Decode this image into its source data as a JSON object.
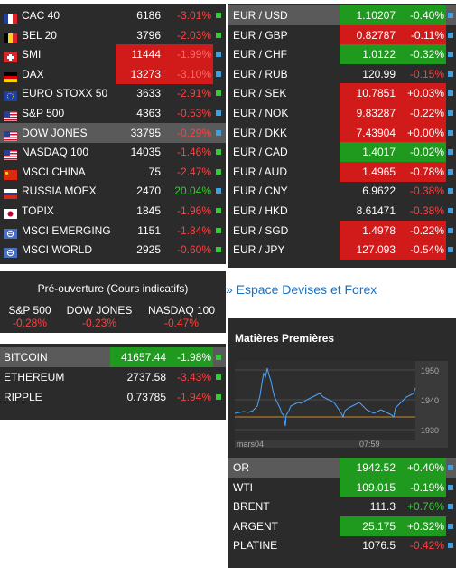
{
  "indices": [
    {
      "name": "CAC 40",
      "value": "6186",
      "change": "-3.01%",
      "flag": "fr",
      "dir": "neg",
      "hl": "",
      "sq": "g"
    },
    {
      "name": "BEL 20",
      "value": "3796",
      "change": "-2.03%",
      "flag": "be",
      "dir": "neg",
      "hl": "",
      "sq": "g"
    },
    {
      "name": "SMI",
      "value": "11444",
      "change": "-1.99%",
      "flag": "ch",
      "dir": "neg",
      "hl": "red",
      "sq": "b"
    },
    {
      "name": "DAX",
      "value": "13273",
      "change": "-3.10%",
      "flag": "de",
      "dir": "neg",
      "hl": "red",
      "sq": "b"
    },
    {
      "name": "EURO STOXX 50",
      "value": "3633",
      "change": "-2.91%",
      "flag": "eu",
      "dir": "neg",
      "hl": "",
      "sq": "g"
    },
    {
      "name": "S&P 500",
      "value": "4363",
      "change": "-0.53%",
      "flag": "us",
      "dir": "neg",
      "hl": "",
      "sq": "b"
    },
    {
      "name": "DOW JONES",
      "value": "33795",
      "change": "-0.29%",
      "flag": "us",
      "dir": "neg",
      "hl": "sel",
      "sq": "b"
    },
    {
      "name": "NASDAQ 100",
      "value": "14035",
      "change": "-1.46%",
      "flag": "us",
      "dir": "neg",
      "hl": "",
      "sq": "g"
    },
    {
      "name": "MSCI CHINA",
      "value": "75",
      "change": "-2.47%",
      "flag": "cn",
      "dir": "neg",
      "hl": "",
      "sq": "g"
    },
    {
      "name": "RUSSIA MOEX",
      "value": "2470",
      "change": "20.04%",
      "flag": "ru",
      "dir": "pos",
      "hl": "",
      "sq": "b"
    },
    {
      "name": "TOPIX",
      "value": "1845",
      "change": "-1.96%",
      "flag": "jp",
      "dir": "neg",
      "hl": "",
      "sq": "g"
    },
    {
      "name": "MSCI EMERGING",
      "value": "1151",
      "change": "-1.84%",
      "flag": "un",
      "dir": "neg",
      "hl": "",
      "sq": "g"
    },
    {
      "name": "MSCI WORLD",
      "value": "2925",
      "change": "-0.60%",
      "flag": "un",
      "dir": "neg",
      "hl": "",
      "sq": "g"
    }
  ],
  "forex": [
    {
      "name": "EUR / USD",
      "value": "1.10207",
      "change": "-0.40%",
      "hl": "green",
      "sel": true,
      "sq": "b"
    },
    {
      "name": "EUR / GBP",
      "value": "0.82787",
      "change": "-0.11%",
      "hl": "red",
      "sel": false,
      "sq": "b"
    },
    {
      "name": "EUR / CHF",
      "value": "1.0122",
      "change": "-0.32%",
      "hl": "green",
      "sel": false,
      "sq": "b"
    },
    {
      "name": "EUR / RUB",
      "value": "120.99",
      "change": "-0.15%",
      "hl": "",
      "sel": false,
      "sq": "b"
    },
    {
      "name": "EUR / SEK",
      "value": "10.7851",
      "change": "+0.03%",
      "hl": "red",
      "sel": false,
      "sq": "b"
    },
    {
      "name": "EUR / NOK",
      "value": "9.83287",
      "change": "-0.22%",
      "hl": "red",
      "sel": false,
      "sq": "b"
    },
    {
      "name": "EUR / DKK",
      "value": "7.43904",
      "change": "+0.00%",
      "hl": "red",
      "sel": false,
      "sq": "b"
    },
    {
      "name": "EUR / CAD",
      "value": "1.4017",
      "change": "-0.02%",
      "hl": "green",
      "sel": false,
      "sq": "b"
    },
    {
      "name": "EUR / AUD",
      "value": "1.4965",
      "change": "-0.78%",
      "hl": "red",
      "sel": false,
      "sq": "b"
    },
    {
      "name": "EUR / CNY",
      "value": "6.9622",
      "change": "-0.38%",
      "hl": "",
      "sel": false,
      "sq": "b"
    },
    {
      "name": "EUR / HKD",
      "value": "8.61471",
      "change": "-0.38%",
      "hl": "",
      "sel": false,
      "sq": "b"
    },
    {
      "name": "EUR / SGD",
      "value": "1.4978",
      "change": "-0.22%",
      "hl": "red",
      "sel": false,
      "sq": "b"
    },
    {
      "name": "EUR / JPY",
      "value": "127.093",
      "change": "-0.54%",
      "hl": "red",
      "sel": false,
      "sq": "b"
    }
  ],
  "preopen": {
    "title": "Pré-ouverture (Cours indicatifs)",
    "items": [
      {
        "label": "S&P 500",
        "value": "-0.28%"
      },
      {
        "label": "DOW JONES",
        "value": "-0.23%"
      },
      {
        "label": "NASDAQ 100",
        "value": "-0.47%"
      }
    ]
  },
  "forex_link": "» Espace Devises et Forex",
  "crypto": [
    {
      "name": "BITCOIN",
      "value": "41657.44",
      "change": "-1.98%",
      "hl": "green",
      "sel": true,
      "sq": "g"
    },
    {
      "name": "ETHEREUM",
      "value": "2737.58",
      "change": "-3.43%",
      "hl": "",
      "sel": false,
      "sq": "g"
    },
    {
      "name": "RIPPLE",
      "value": "0.73785",
      "change": "-1.94%",
      "hl": "",
      "sel": false,
      "sq": "g"
    }
  ],
  "commodities": {
    "title": "Matières Premières",
    "chart": {
      "y_ticks": [
        "1950",
        "1940",
        "1930"
      ],
      "x_labels": [
        "mars04",
        "07:59"
      ],
      "line_color": "#4da6ff",
      "ref_color": "#cc8a2e"
    },
    "rows": [
      {
        "name": "OR",
        "value": "1942.52",
        "change": "+0.40%",
        "hl": "green",
        "sel": true,
        "sq": "b"
      },
      {
        "name": "WTI",
        "value": "109.015",
        "change": "-0.19%",
        "hl": "green",
        "sel": false,
        "sq": "b"
      },
      {
        "name": "BRENT",
        "value": "111.3",
        "change": "+0.76%",
        "hl": "",
        "sel": false,
        "sq": "b"
      },
      {
        "name": "ARGENT",
        "value": "25.175",
        "change": "+0.32%",
        "hl": "green",
        "sel": false,
        "sq": "b"
      },
      {
        "name": "PLATINE",
        "value": "1076.5",
        "change": "-0.42%",
        "hl": "",
        "sel": false,
        "sq": "b"
      }
    ]
  }
}
